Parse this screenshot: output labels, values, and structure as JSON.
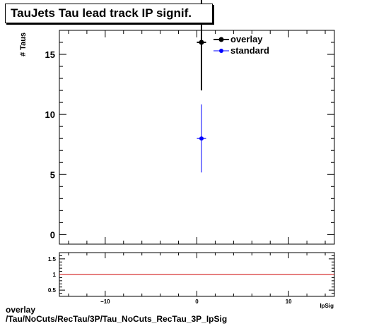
{
  "title": "TauJets Tau lead track IP signif.",
  "footer": {
    "line1": "overlay",
    "line2": "/Tau/NoCuts/RecTau/3P/Tau_NoCuts_RecTau_3P_IpSig"
  },
  "chart_data": [
    {
      "type": "scatter",
      "ylabel": "# Taus",
      "xlabel": "IpSig",
      "xlim": [
        -15,
        15
      ],
      "ylim": [
        -0.8,
        17
      ],
      "x_ticks": [
        -10,
        0,
        10
      ],
      "y_ticks": [
        0,
        5,
        10,
        15
      ],
      "legend": {
        "placement": "top-right",
        "entries": [
          "overlay",
          "standard"
        ]
      },
      "series": [
        {
          "name": "overlay",
          "color": "#000000",
          "points": [
            {
              "x": 0.5,
              "y": 16,
              "y_err": 4
            }
          ]
        },
        {
          "name": "standard",
          "color": "#0000ff",
          "points": [
            {
              "x": 0.5,
              "y": 8,
              "y_err": 2.83
            }
          ]
        }
      ]
    },
    {
      "type": "line",
      "xlim": [
        -15,
        15
      ],
      "ylim": [
        0.3,
        1.7
      ],
      "y_ticks": [
        0.5,
        1,
        1.5
      ],
      "y_tick_labels": [
        "0.5",
        "1",
        "1.5"
      ],
      "x_ticks": [
        -10,
        0,
        10
      ],
      "reference_line": {
        "y": 1,
        "color": "#cc0000"
      }
    }
  ]
}
